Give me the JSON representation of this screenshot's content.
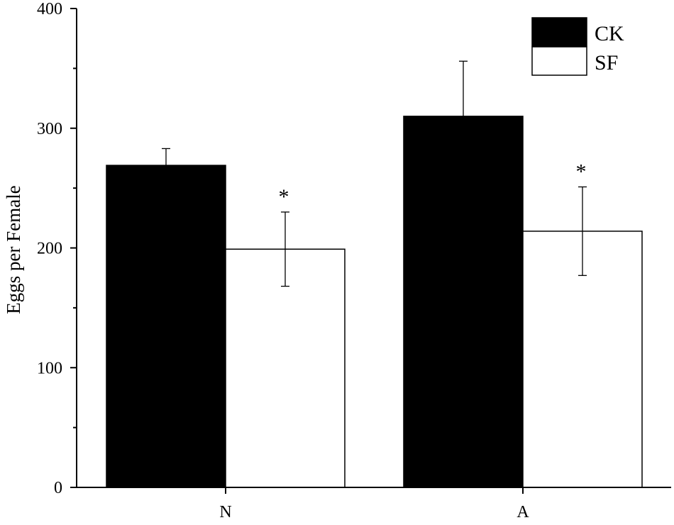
{
  "chart_data": {
    "type": "bar",
    "categories": [
      "N",
      "A"
    ],
    "series": [
      {
        "name": "CK",
        "fill": "#000000",
        "values": [
          269,
          310
        ],
        "errors": [
          14,
          46
        ],
        "annotations": [
          "",
          ""
        ]
      },
      {
        "name": "SF",
        "fill": "#ffffff",
        "values": [
          199,
          214
        ],
        "errors": [
          31,
          37
        ],
        "annotations": [
          "*",
          "*"
        ]
      }
    ],
    "title": "",
    "xlabel": "",
    "ylabel": "Eggs per Female",
    "ylim": [
      0,
      400
    ],
    "yticks": [
      0,
      100,
      200,
      300,
      400
    ],
    "grid": false,
    "legend_position": "top-right"
  }
}
